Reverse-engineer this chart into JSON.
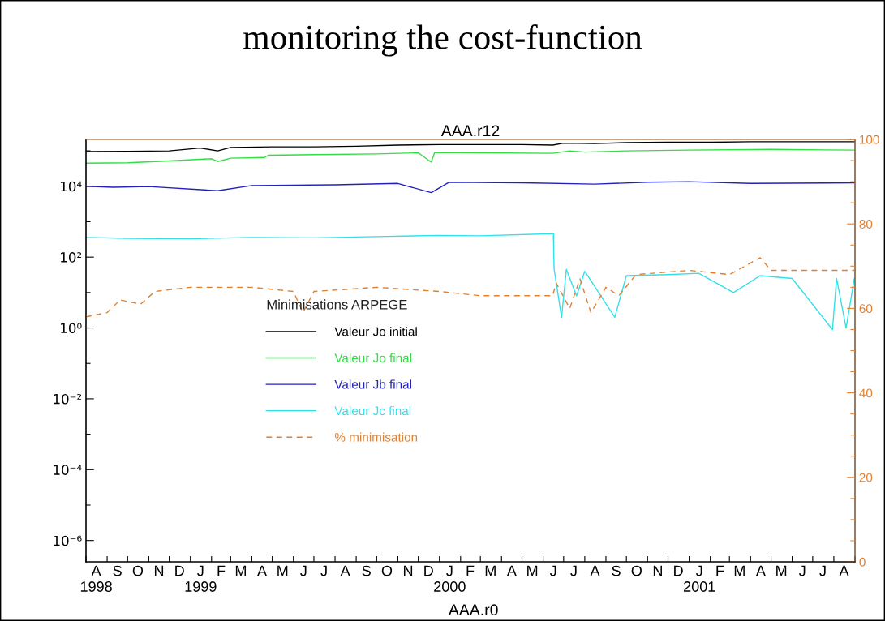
{
  "chart_data": {
    "type": "line",
    "title": "monitoring the cost-function",
    "subtitle": "AAA.r12",
    "annotations": [
      "AAA.r0"
    ],
    "legend_title": "Minimisations ARPEGE",
    "legend": "center left",
    "grid": false,
    "line_style": "solid",
    "marker": "none",
    "log": "y",
    "xlim": [
      "1998-08-01",
      "2001-09-01"
    ],
    "xticks": [
      {
        "value": "1998-08-01",
        "label": null
      },
      {
        "value": "1998-09-01",
        "label": null
      },
      {
        "value": "1998-10-01",
        "label": null
      },
      {
        "value": "1998-11-01",
        "label": null
      },
      {
        "value": "1998-12-01",
        "label": null
      },
      {
        "value": "1999-01-01",
        "label": null
      },
      {
        "value": "1999-02-01",
        "label": null
      },
      {
        "value": "1999-03-01",
        "label": null
      },
      {
        "value": "1999-04-01",
        "label": null
      },
      {
        "value": "1999-05-01",
        "label": null
      },
      {
        "value": "1999-06-01",
        "label": null
      },
      {
        "value": "1999-07-01",
        "label": null
      },
      {
        "value": "1999-08-01",
        "label": null
      },
      {
        "value": "1999-09-01",
        "label": null
      },
      {
        "value": "1999-10-01",
        "label": null
      },
      {
        "value": "1999-11-01",
        "label": null
      },
      {
        "value": "1999-12-01",
        "label": null
      },
      {
        "value": "2000-01-01",
        "label": null
      },
      {
        "value": "2000-02-01",
        "label": null
      },
      {
        "value": "2000-03-01",
        "label": null
      },
      {
        "value": "2000-04-01",
        "label": null
      },
      {
        "value": "2000-05-01",
        "label": null
      },
      {
        "value": "2000-06-01",
        "label": null
      },
      {
        "value": "2000-07-01",
        "label": null
      },
      {
        "value": "2000-08-01",
        "label": null
      },
      {
        "value": "2000-09-01",
        "label": null
      },
      {
        "value": "2000-10-01",
        "label": null
      },
      {
        "value": "2000-11-01",
        "label": null
      },
      {
        "value": "2000-12-01",
        "label": null
      },
      {
        "value": "2001-01-01",
        "label": null
      },
      {
        "value": "2001-02-01",
        "label": null
      },
      {
        "value": "2001-03-01",
        "label": null
      },
      {
        "value": "2001-04-01",
        "label": null
      },
      {
        "value": "2001-05-01",
        "label": null
      },
      {
        "value": "2001-06-01",
        "label": null
      },
      {
        "value": "2001-07-01",
        "label": null
      },
      {
        "value": "2001-08-01",
        "label": null
      },
      {
        "value": "2001-09-01",
        "label": null
      },
      {
        "value": "1998-08-16",
        "label": "A\n1998"
      },
      {
        "value": "1998-09-16",
        "label": "S"
      },
      {
        "value": "1998-10-16",
        "label": "O"
      },
      {
        "value": "1998-11-16",
        "label": "N"
      },
      {
        "value": "1998-12-16",
        "label": "D"
      },
      {
        "value": "1999-01-16",
        "label": "J\n1999"
      },
      {
        "value": "1999-02-15",
        "label": "F"
      },
      {
        "value": "1999-03-16",
        "label": "M"
      },
      {
        "value": "1999-04-16",
        "label": "A"
      },
      {
        "value": "1999-05-16",
        "label": "M"
      },
      {
        "value": "1999-06-16",
        "label": "J"
      },
      {
        "value": "1999-07-16",
        "label": "J"
      },
      {
        "value": "1999-08-16",
        "label": "A"
      },
      {
        "value": "1999-09-16",
        "label": "S"
      },
      {
        "value": "1999-10-16",
        "label": "O"
      },
      {
        "value": "1999-11-16",
        "label": "N"
      },
      {
        "value": "1999-12-16",
        "label": "D"
      },
      {
        "value": "2000-01-16",
        "label": "J\n2000"
      },
      {
        "value": "2000-02-15",
        "label": "F"
      },
      {
        "value": "2000-03-16",
        "label": "M"
      },
      {
        "value": "2000-04-16",
        "label": "A"
      },
      {
        "value": "2000-05-16",
        "label": "M"
      },
      {
        "value": "2000-06-16",
        "label": "J"
      },
      {
        "value": "2000-07-16",
        "label": "J"
      },
      {
        "value": "2000-08-16",
        "label": "A"
      },
      {
        "value": "2000-09-16",
        "label": "S"
      },
      {
        "value": "2000-10-16",
        "label": "O"
      },
      {
        "value": "2000-11-16",
        "label": "N"
      },
      {
        "value": "2000-12-16",
        "label": "D"
      },
      {
        "value": "2001-01-16",
        "label": "J\n2001"
      },
      {
        "value": "2001-02-15",
        "label": "F"
      },
      {
        "value": "2001-03-16",
        "label": "M"
      },
      {
        "value": "2001-04-16",
        "label": "A"
      },
      {
        "value": "2001-05-16",
        "label": "M"
      },
      {
        "value": "2001-06-16",
        "label": "J"
      },
      {
        "value": "2001-07-16",
        "label": "J"
      },
      {
        "value": "2001-08-16",
        "label": "A"
      }
    ],
    "ylim": [
      2.5e-07,
      210000
    ],
    "yticks": [
      {
        "value": 1e-06,
        "label": "10⁻⁶"
      },
      {
        "value": 1e-05,
        "label": null
      },
      {
        "value": 0.0001,
        "label": "10⁻⁴"
      },
      {
        "value": 0.001,
        "label": null
      },
      {
        "value": 0.01,
        "label": "10⁻²"
      },
      {
        "value": 0.1,
        "label": null
      },
      {
        "value": 1,
        "label": "10⁰"
      },
      {
        "value": 10,
        "label": null
      },
      {
        "value": 100,
        "label": "10²"
      },
      {
        "value": 1000,
        "label": null
      },
      {
        "value": 10000,
        "label": "10⁴"
      },
      {
        "value": 100000,
        "label": null
      }
    ],
    "y2lim": [
      0,
      100
    ],
    "y2ticks": [
      0,
      {
        "value": 5,
        "label": null
      },
      {
        "value": 10,
        "label": null
      },
      {
        "value": 15,
        "label": null
      },
      20,
      {
        "value": 25,
        "label": null
      },
      {
        "value": 30,
        "label": null
      },
      {
        "value": 35,
        "label": null
      },
      40,
      {
        "value": 45,
        "label": null
      },
      {
        "value": 50,
        "label": null
      },
      {
        "value": 55,
        "label": null
      },
      60,
      {
        "value": 65,
        "label": null
      },
      {
        "value": 70,
        "label": null
      },
      {
        "value": 75,
        "label": null
      },
      80,
      {
        "value": 85,
        "label": null
      },
      {
        "value": 90,
        "label": null
      },
      {
        "value": 95,
        "label": null
      },
      100
    ],
    "series": [
      {
        "name": "Valeur Jo initial",
        "color": "#000000",
        "x": [
          "1998-08-01",
          "1998-10-01",
          "1998-12-01",
          "1999-01-15",
          "1999-02-10",
          "1999-03-01",
          "1999-05-01",
          "1999-07-01",
          "1999-09-01",
          "1999-11-01",
          "2000-01-01",
          "2000-03-01",
          "2000-05-01",
          "2000-06-15",
          "2000-07-01",
          "2000-08-15",
          "2000-10-01",
          "2000-12-01",
          "2001-02-01",
          "2001-04-01",
          "2001-06-01",
          "2001-08-31"
        ],
        "values": [
          95000,
          97000,
          100000,
          120000,
          100000,
          125000,
          130000,
          130000,
          135000,
          145000,
          150000,
          150000,
          150000,
          145000,
          165000,
          160000,
          170000,
          175000,
          175000,
          180000,
          180000,
          180000
        ]
      },
      {
        "name": "Valeur Jo final",
        "color": "#33dd44",
        "x": [
          "1998-08-01",
          "1998-10-01",
          "1998-12-01",
          "1999-02-01",
          "1999-02-10",
          "1999-03-01",
          "1999-04-20",
          "1999-04-25",
          "1999-07-01",
          "1999-10-01",
          "1999-12-01",
          "1999-12-20",
          "1999-12-25",
          "2000-03-01",
          "2000-06-15",
          "2000-07-10",
          "2000-08-01",
          "2000-10-01",
          "2001-01-01",
          "2001-05-01",
          "2001-08-31"
        ],
        "values": [
          45000,
          46000,
          52000,
          60000,
          50000,
          62000,
          65000,
          75000,
          78000,
          82000,
          88000,
          48000,
          90000,
          88000,
          85000,
          100000,
          92000,
          100000,
          105000,
          110000,
          105000
        ]
      },
      {
        "name": "Valeur Jb final",
        "color": "#2222bb",
        "x": [
          "1998-08-01",
          "1998-09-10",
          "1998-11-01",
          "1999-02-10",
          "1999-04-01",
          "1999-08-01",
          "1999-11-01",
          "1999-12-20",
          "2000-01-15",
          "2000-05-01",
          "2000-08-15",
          "2000-11-01",
          "2001-01-01",
          "2001-04-01",
          "2001-08-31"
        ],
        "values": [
          10000,
          9400,
          9800,
          7500,
          10500,
          11000,
          12000,
          6600,
          13000,
          12500,
          11500,
          13000,
          13500,
          12000,
          12500
        ]
      },
      {
        "name": "Valeur Jc final",
        "color": "#33e0e8",
        "x": [
          "1998-08-01",
          "1998-10-01",
          "1999-01-01",
          "1999-04-01",
          "1999-07-01",
          "1999-10-01",
          "2000-01-01",
          "2000-03-01",
          "2000-06-16",
          "2000-06-17",
          "2000-06-28",
          "2000-07-05",
          "2000-07-20",
          "2000-08-01",
          "2000-09-14",
          "2000-10-01",
          "2000-12-01",
          "2001-01-15",
          "2001-03-07",
          "2001-04-15",
          "2001-06-01",
          "2001-07-30",
          "2001-08-05",
          "2001-08-19",
          "2001-08-31"
        ],
        "values": [
          360,
          340,
          330,
          360,
          350,
          380,
          410,
          400,
          460,
          47,
          2,
          45,
          8,
          40,
          2,
          30,
          32,
          35,
          10,
          30,
          25,
          0.9,
          25,
          1,
          25
        ]
      },
      {
        "name": "% minimisation",
        "color": "#e08030",
        "axis": "y2",
        "line_style": "dashed",
        "x": [
          "1998-08-01",
          "1998-09-01",
          "1998-09-20",
          "1998-10-20",
          "1998-11-10",
          "1999-01-01",
          "1999-04-01",
          "1999-06-01",
          "1999-06-15",
          "1999-07-01",
          "1999-10-01",
          "2000-01-01",
          "2000-03-01",
          "2000-06-15",
          "2000-06-20",
          "2000-07-10",
          "2000-07-25",
          "2000-08-10",
          "2000-09-01",
          "2000-09-20",
          "2000-10-15",
          "2001-01-01",
          "2001-03-01",
          "2001-04-15",
          "2001-05-01",
          "2001-08-31"
        ],
        "values": [
          58,
          59,
          62,
          61,
          64,
          65,
          65,
          64,
          59,
          64,
          65,
          64,
          63,
          63,
          66,
          60,
          67,
          59,
          65,
          63,
          68,
          69,
          68,
          72,
          69,
          69
        ]
      }
    ]
  }
}
